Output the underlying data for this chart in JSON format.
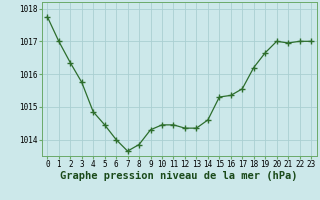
{
  "x": [
    0,
    1,
    2,
    3,
    4,
    5,
    6,
    7,
    8,
    9,
    10,
    11,
    12,
    13,
    14,
    15,
    16,
    17,
    18,
    19,
    20,
    21,
    22,
    23
  ],
  "y": [
    1017.75,
    1017.0,
    1016.35,
    1015.75,
    1014.85,
    1014.45,
    1014.0,
    1013.65,
    1013.85,
    1014.3,
    1014.45,
    1014.45,
    1014.35,
    1014.35,
    1014.6,
    1015.3,
    1015.35,
    1015.55,
    1016.2,
    1016.65,
    1017.0,
    1016.95,
    1017.0,
    1017.0
  ],
  "line_color": "#2d6e2d",
  "marker_color": "#2d6e2d",
  "bg_plot": "#cce8ea",
  "bg_fig": "#cce8ea",
  "grid_color": "#aacfd2",
  "grid_color_major": "#c0dcde",
  "xlabel": "Graphe pression niveau de la mer (hPa)",
  "xlabel_fontsize": 7.5,
  "ylim": [
    1013.5,
    1018.2
  ],
  "yticks": [
    1014,
    1015,
    1016,
    1017,
    1018
  ],
  "xlim": [
    -0.5,
    23.5
  ],
  "xticks": [
    0,
    1,
    2,
    3,
    4,
    5,
    6,
    7,
    8,
    9,
    10,
    11,
    12,
    13,
    14,
    15,
    16,
    17,
    18,
    19,
    20,
    21,
    22,
    23
  ],
  "tick_fontsize": 5.5,
  "spine_color": "#6aaa6a"
}
